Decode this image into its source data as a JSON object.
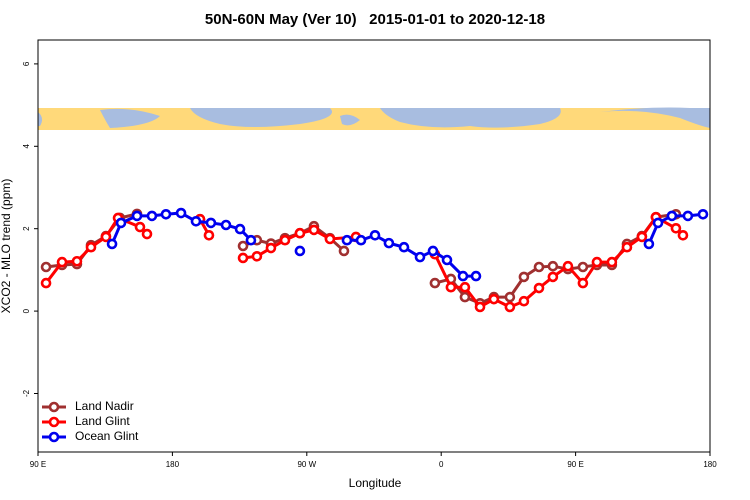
{
  "chart_data": {
    "type": "line",
    "title": "50N-60N May (Ver 10)   2015-01-01 to 2020-12-18",
    "xlabel": "Longitude",
    "ylabel": "XCO2 - MLO trend (ppm)",
    "xlim": [
      90,
      540
    ],
    "ylim": [
      -3.42,
      6.58
    ],
    "xticks": [
      {
        "value": 90,
        "label": "90 E"
      },
      180,
      {
        "value": 270,
        "label": "90 W"
      },
      {
        "value": 360,
        "label": "0"
      },
      {
        "value": 450,
        "label": "90 E"
      },
      {
        "value": 540,
        "label": "180"
      }
    ],
    "yticks": [
      -2,
      0,
      2,
      4,
      6
    ],
    "grid": false,
    "legend": "bottom-left",
    "series": [
      {
        "name": "Land Nadir",
        "color": "#a03030",
        "x": [
          95.4,
          106.1,
          116.1,
          125.5,
          135.5,
          144.9,
          156.3,
          null,
          198.5,
          null,
          227.3,
          236.6,
          246,
          255.4,
          265.4,
          274.8,
          285.5,
          294.9,
          null,
          355.8,
          366.5,
          375.9,
          386,
          395.3,
          406,
          415.4,
          425.5,
          434.8,
          444.9,
          454.9,
          464.3,
          474.3,
          484.4,
          494.4,
          503.8,
          517.2
        ],
        "values": [
          1.07,
          1.12,
          1.14,
          1.6,
          1.82,
          2.26,
          2.36,
          null,
          2.23,
          null,
          1.58,
          1.72,
          1.64,
          1.77,
          1.89,
          2.06,
          1.77,
          1.46,
          null,
          0.68,
          0.78,
          0.34,
          0.19,
          0.34,
          0.34,
          0.83,
          1.07,
          1.09,
          1.02,
          1.07,
          1.12,
          1.12,
          1.63,
          1.82,
          2.28,
          2.35
        ]
      },
      {
        "name": "Land Glint",
        "color": "#ff0000",
        "x": [
          95.4,
          106.1,
          116.1,
          125.5,
          135.5,
          143.6,
          158.3,
          163,
          null,
          198.5,
          204.5,
          null,
          227.3,
          236.6,
          246,
          255.4,
          265.4,
          274.8,
          285.5,
          302.9,
          null,
          355.8,
          366.5,
          375.9,
          386,
          395.3,
          406,
          415.4,
          425.5,
          434.8,
          444.9,
          454.9,
          464.3,
          474.3,
          484.4,
          494.4,
          503.8,
          517.2,
          521.9
        ],
        "values": [
          0.68,
          1.19,
          1.21,
          1.55,
          1.8,
          2.26,
          2.04,
          1.87,
          null,
          2.23,
          1.84,
          null,
          1.29,
          1.33,
          1.53,
          1.72,
          1.89,
          1.97,
          1.75,
          1.8,
          null,
          1.38,
          0.58,
          0.58,
          0.1,
          0.29,
          0.1,
          0.24,
          0.56,
          0.83,
          1.09,
          0.68,
          1.19,
          1.19,
          1.55,
          1.8,
          2.28,
          2.01,
          1.84
        ]
      },
      {
        "name": "Ocean Glint",
        "color": "#0000ee",
        "x": [
          139.6,
          145.6,
          156.3,
          166.3,
          175.7,
          185.8,
          195.8,
          205.8,
          215.9,
          225.3,
          232.6,
          null,
          265.4,
          null,
          296.9,
          306.3,
          315.7,
          325,
          335.1,
          345.8,
          354.5,
          363.9,
          374.6,
          383.3,
          null,
          499.1,
          505.2,
          514.5,
          525.2,
          535.3
        ],
        "values": [
          1.63,
          2.14,
          2.31,
          2.31,
          2.35,
          2.38,
          2.18,
          2.14,
          2.09,
          1.99,
          1.72,
          null,
          1.46,
          null,
          1.72,
          1.72,
          1.84,
          1.65,
          1.55,
          1.31,
          1.46,
          1.24,
          0.85,
          0.85,
          null,
          1.63,
          2.14,
          2.31,
          2.31,
          2.35
        ]
      }
    ]
  }
}
